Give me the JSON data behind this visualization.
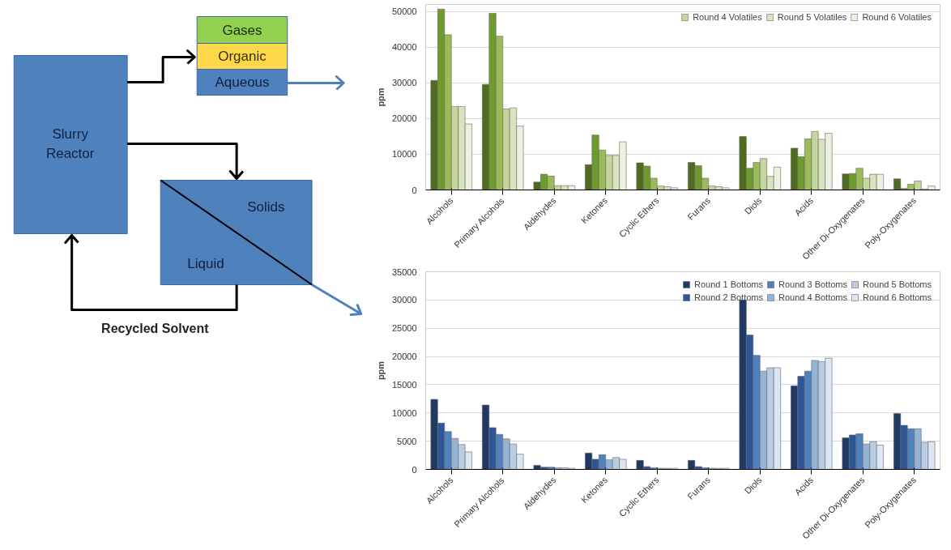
{
  "chart_data": [
    {
      "type": "other",
      "annotations": [
        "Gases",
        "Organic",
        "Aqueous",
        "Slurry Reactor",
        "Solids",
        "Liquid",
        "Recycled Solvent"
      ]
    },
    {
      "type": "bar",
      "ylabel": "ppm",
      "categories": [
        "Alcohols",
        "Primary Alcohols",
        "Aldehydes",
        "Ketones",
        "Cyclic Ethers",
        "Furans",
        "Diols",
        "Acids",
        "Other Di-Oxygenates",
        "Poly-Oxygenates"
      ],
      "ylim": [
        0,
        52000
      ],
      "yticks": [
        0,
        10000,
        20000,
        30000,
        40000,
        50000
      ],
      "grid": "y",
      "legend": "top right",
      "series": [
        {
          "color": "#4e6b1f",
          "values": [
            30700,
            29600,
            2200,
            7100,
            7600,
            7700,
            15000,
            11700,
            4500,
            3100
          ]
        },
        {
          "color": "#6f9a2e",
          "values": [
            50700,
            49500,
            4400,
            15400,
            6700,
            6800,
            6100,
            9300,
            4600,
            400
          ]
        },
        {
          "color": "#9bbb59",
          "values": [
            43500,
            43100,
            3900,
            11200,
            3300,
            3300,
            7700,
            14300,
            6100,
            1600
          ]
        },
        {
          "name": "Round 4 Volatiles",
          "color": "#c3d69b",
          "values": [
            23400,
            22700,
            1200,
            9700,
            1100,
            1100,
            8800,
            16400,
            3300,
            2500
          ]
        },
        {
          "name": "Round 5 Volatiles",
          "color": "#d7e4bd",
          "values": [
            23400,
            23000,
            1200,
            9700,
            900,
            900,
            3800,
            14200,
            4400,
            300
          ]
        },
        {
          "name": "Round 6 Volatiles",
          "color": "#ebf1de",
          "values": [
            18500,
            17900,
            1200,
            13500,
            600,
            600,
            6400,
            15900,
            4400,
            1100
          ]
        }
      ]
    },
    {
      "type": "bar",
      "ylabel": "ppm",
      "categories": [
        "Alcohols",
        "Primary Alcohols",
        "Aldehydes",
        "Ketones",
        "Cyclic Ethers",
        "Furans",
        "Diols",
        "Acids",
        "Other Di-Oxygenates",
        "Poly-Oxygenates"
      ],
      "ylim": [
        0,
        35000
      ],
      "yticks": [
        0,
        5000,
        10000,
        15000,
        20000,
        25000,
        30000,
        35000
      ],
      "grid": "y",
      "legend": "top right",
      "series": [
        {
          "name": "Round 1 Bottoms",
          "color": "#1f3864",
          "values": [
            12400,
            11400,
            700,
            2900,
            1600,
            1600,
            30000,
            14800,
            5600,
            9900
          ]
        },
        {
          "name": "Round 2 Bottoms",
          "color": "#2e5597",
          "values": [
            8200,
            7400,
            400,
            1800,
            500,
            500,
            23800,
            16500,
            6100,
            7800
          ]
        },
        {
          "name": "Round 3 Bottoms",
          "color": "#4f81bd",
          "values": [
            6700,
            6200,
            400,
            2600,
            300,
            300,
            20200,
            17400,
            6300,
            7200
          ]
        },
        {
          "name": "Round 4 Bottoms",
          "color": "#95b3d7",
          "values": [
            5500,
            5400,
            300,
            1700,
            200,
            200,
            17400,
            19300,
            4500,
            7200
          ]
        },
        {
          "name": "Round 5 Bottoms",
          "color": "#b8cce4",
          "values": [
            4400,
            4500,
            300,
            2100,
            200,
            200,
            18000,
            19100,
            4900,
            4800
          ]
        },
        {
          "name": "Round 6 Bottoms",
          "color": "#dce6f2",
          "values": [
            3100,
            2700,
            200,
            1800,
            200,
            200,
            18000,
            19700,
            4300,
            4900
          ]
        }
      ]
    }
  ]
}
